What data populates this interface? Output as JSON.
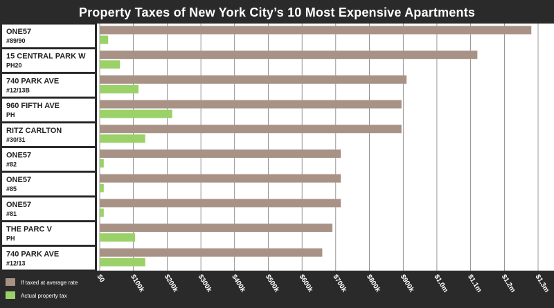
{
  "colors": {
    "average": "#a89286",
    "actual": "#9bd169",
    "background": "#2a2a2a",
    "plot_bg": "#ffffff",
    "grid": "#555555"
  },
  "chart_data": {
    "type": "bar",
    "orientation": "horizontal",
    "title": "Property Taxes of New York City’s 10 Most Expensive Apartments",
    "categories": [
      {
        "name": "ONE57",
        "unit": "#89/90"
      },
      {
        "name": "15 CENTRAL PARK W",
        "unit": "PH20"
      },
      {
        "name": "740 PARK AVE",
        "unit": "#12/13B"
      },
      {
        "name": "960 FIFTH AVE",
        "unit": "PH"
      },
      {
        "name": "RITZ CARLTON",
        "unit": "#30/31"
      },
      {
        "name": "ONE57",
        "unit": "#82"
      },
      {
        "name": "ONE57",
        "unit": "#85"
      },
      {
        "name": "ONE57",
        "unit": "#81"
      },
      {
        "name": "THE PARC V",
        "unit": "PH"
      },
      {
        "name": "740 PARK AVE",
        "unit": "#12/13"
      }
    ],
    "series": [
      {
        "name": "If taxed at average rate",
        "color": "#a89286",
        "values": [
          1280000,
          1120000,
          910000,
          895000,
          895000,
          715000,
          715000,
          715000,
          690000,
          660000
        ]
      },
      {
        "name": "Actual property tax",
        "color": "#9bd169",
        "values": [
          25000,
          60000,
          115000,
          215000,
          135000,
          12000,
          12000,
          12000,
          105000,
          135000
        ]
      }
    ],
    "xlim": [
      0,
      1300000
    ],
    "x_ticks": [
      {
        "value": 0,
        "label": "$0"
      },
      {
        "value": 100000,
        "label": "$100k"
      },
      {
        "value": 200000,
        "label": "$200k"
      },
      {
        "value": 300000,
        "label": "$300k"
      },
      {
        "value": 400000,
        "label": "$400k"
      },
      {
        "value": 500000,
        "label": "$500k"
      },
      {
        "value": 600000,
        "label": "$600k"
      },
      {
        "value": 700000,
        "label": "$700k"
      },
      {
        "value": 800000,
        "label": "$800k"
      },
      {
        "value": 900000,
        "label": "$900k"
      },
      {
        "value": 1000000,
        "label": "$1.0m"
      },
      {
        "value": 1100000,
        "label": "$1.1m"
      },
      {
        "value": 1200000,
        "label": "$1.2m"
      },
      {
        "value": 1300000,
        "label": "$1.3m"
      }
    ],
    "legend_position": "bottom-left",
    "grid": true
  }
}
